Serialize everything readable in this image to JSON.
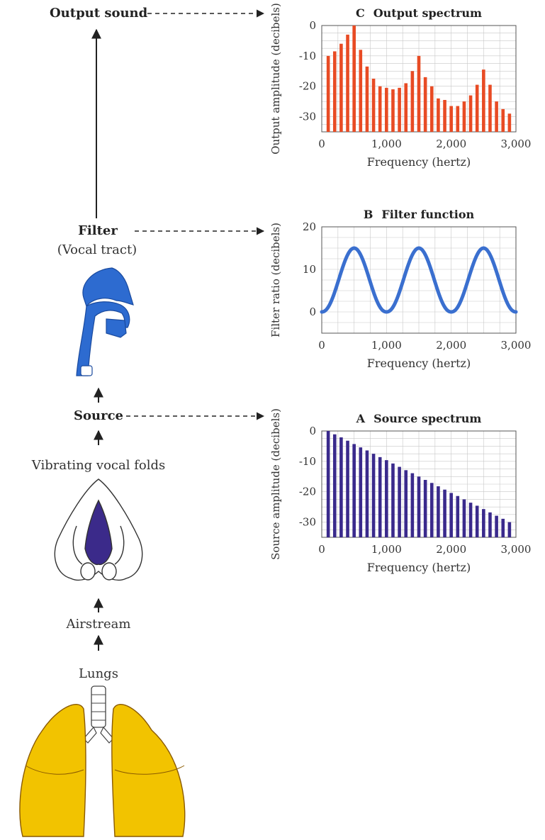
{
  "flow": {
    "output_sound": "Output sound",
    "filter": "Filter",
    "vocal_tract": "(Vocal tract)",
    "source": "Source",
    "vibrating_folds": "Vibrating vocal folds",
    "airstream": "Airstream",
    "lungs": "Lungs"
  },
  "colors": {
    "output": "#e84b24",
    "filter": "#3a6fcf",
    "source": "#3a2a8c",
    "lungs": "#f2c300",
    "vocal_tract": "#2d6bd0",
    "vocal_folds": "#3b2a8a"
  },
  "chart_data": [
    {
      "id": "output",
      "type": "bar",
      "letter": "C",
      "title": "Output spectrum",
      "xlabel": "Frequency (hertz)",
      "ylabel": "Output amplitude (decibels)",
      "xlim": [
        0,
        3000
      ],
      "ylim": [
        -35,
        0
      ],
      "xticks": [
        0,
        1000,
        2000,
        3000
      ],
      "xtick_labels": [
        "0",
        "1,000",
        "2,000",
        "3,000"
      ],
      "yticks": [
        0,
        -10,
        -20,
        -30
      ],
      "ytick_labels": [
        "0",
        "-10",
        "-20",
        "-30"
      ],
      "grid": true,
      "x": [
        100,
        200,
        300,
        400,
        500,
        600,
        700,
        800,
        900,
        1000,
        1100,
        1200,
        1300,
        1400,
        1500,
        1600,
        1700,
        1800,
        1900,
        2000,
        2100,
        2200,
        2300,
        2400,
        2500,
        2600,
        2700,
        2800,
        2900
      ],
      "values": [
        -10,
        -8.5,
        -6,
        -3,
        0,
        -8,
        -13.5,
        -17.5,
        -20,
        -20.5,
        -21,
        -20.5,
        -19,
        -15,
        -10,
        -17,
        -20,
        -24,
        -24.5,
        -26.5,
        -26.5,
        -25,
        -23,
        -19.5,
        -14.5,
        -19.5,
        -25,
        -27.5,
        -29
      ]
    },
    {
      "id": "filter",
      "type": "line",
      "letter": "B",
      "title": "Filter function",
      "xlabel": "Frequency (hertz)",
      "ylabel": "Filter ratio (decibels)",
      "xlim": [
        0,
        3000
      ],
      "ylim": [
        -5,
        20
      ],
      "xticks": [
        0,
        1000,
        2000,
        3000
      ],
      "xtick_labels": [
        "0",
        "1,000",
        "2,000",
        "3,000"
      ],
      "yticks": [
        20,
        10,
        0
      ],
      "ytick_labels": [
        "20",
        "10",
        "0"
      ],
      "grid": true,
      "peaks": [
        500,
        1500,
        2500
      ],
      "peak_value": 15
    },
    {
      "id": "source",
      "type": "bar",
      "letter": "A",
      "title": "Source spectrum",
      "xlabel": "Frequency (hertz)",
      "ylabel": "Source amplitude (decibels)",
      "xlim": [
        0,
        3000
      ],
      "ylim": [
        -35,
        0
      ],
      "xticks": [
        0,
        1000,
        2000,
        3000
      ],
      "xtick_labels": [
        "0",
        "1,000",
        "2,000",
        "3,000"
      ],
      "yticks": [
        0,
        -10,
        -20,
        -30
      ],
      "ytick_labels": [
        "0",
        "-10",
        "-20",
        "-30"
      ],
      "grid": true,
      "x": [
        100,
        200,
        300,
        400,
        500,
        600,
        700,
        800,
        900,
        1000,
        1100,
        1200,
        1300,
        1400,
        1500,
        1600,
        1700,
        1800,
        1900,
        2000,
        2100,
        2200,
        2300,
        2400,
        2500,
        2600,
        2700,
        2800,
        2900
      ],
      "values": [
        0,
        -1.1,
        -2.1,
        -3.2,
        -4.3,
        -5.4,
        -6.4,
        -7.5,
        -8.6,
        -9.6,
        -10.7,
        -11.8,
        -12.9,
        -13.9,
        -15.0,
        -16.1,
        -17.1,
        -18.2,
        -19.3,
        -20.4,
        -21.4,
        -22.5,
        -23.6,
        -24.6,
        -25.7,
        -26.8,
        -27.9,
        -28.9,
        -30.0
      ]
    }
  ]
}
